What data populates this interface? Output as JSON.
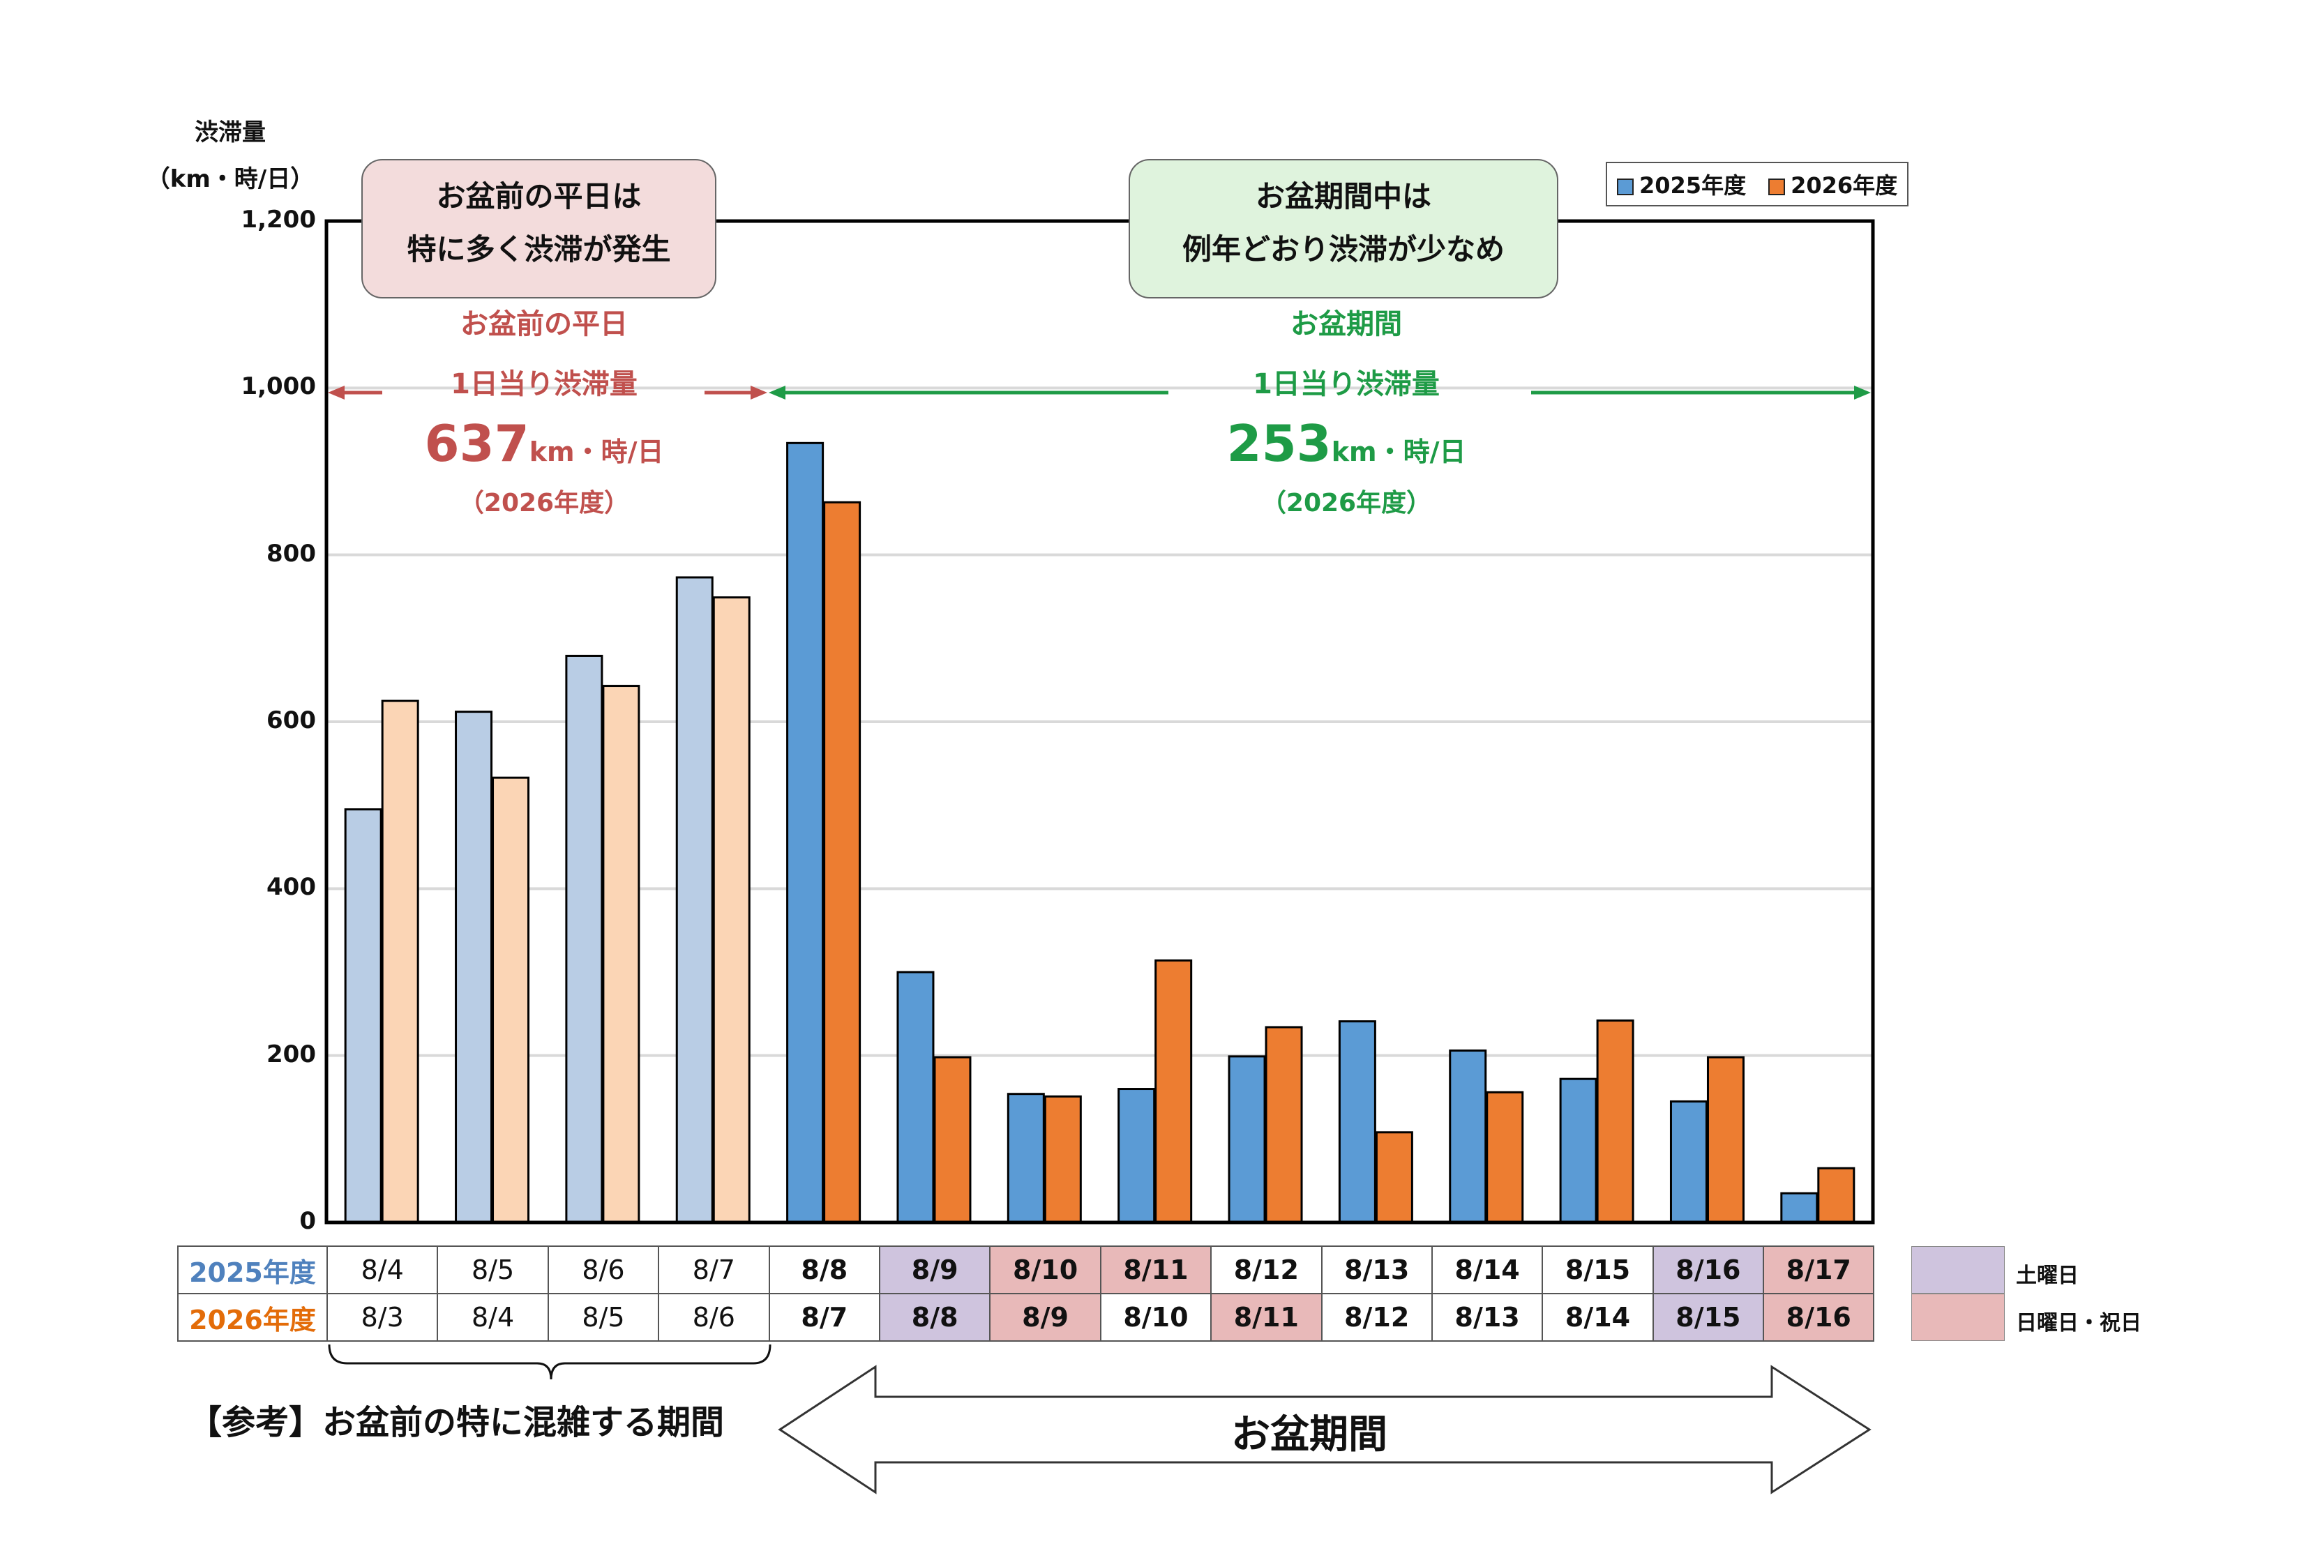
{
  "chart_data": {
    "type": "bar",
    "y_title_line1": "渋滞量",
    "y_title_line2": "（km・時/日）",
    "ylim": [
      0,
      1200
    ],
    "yticks": [
      "0",
      "200",
      "400",
      "600",
      "800",
      "1,000",
      "1,200"
    ],
    "grid": true,
    "legend_position": "top-right",
    "series": [
      {
        "name": "2025年度",
        "color": "#5b9bd5",
        "light_color": "#b9cde5",
        "values": [
          495,
          612,
          679,
          773,
          934,
          300,
          154,
          160,
          199,
          241,
          206,
          172,
          145,
          35
        ]
      },
      {
        "name": "2026年度",
        "color": "#ed7d31",
        "light_color": "#fbd5b5",
        "values": [
          625,
          533,
          643,
          749,
          863,
          198,
          151,
          314,
          234,
          108,
          156,
          242,
          198,
          65
        ]
      }
    ],
    "light_groups": 4
  },
  "notes": {
    "left_line1": "お盆前の平日は",
    "left_line2": "特に多く渋滞が発生",
    "right_line1": "お盆期間中は",
    "right_line2": "例年どおり渋滞が少なめ"
  },
  "annotations": {
    "left": {
      "title": "お盆前の平日",
      "subtitle": "1日当り渋滞量",
      "value": "637",
      "unit": "km・時/日",
      "year": "（2026年度）"
    },
    "right": {
      "title": "お盆期間",
      "subtitle": "1日当り渋滞量",
      "value": "253",
      "unit": "km・時/日",
      "year": "（2026年度）"
    }
  },
  "colors": {
    "red_text": "#c0504d",
    "green_text": "#1e9b46",
    "saturday": "#cfc4de",
    "sunday_holiday": "#e8b9b9"
  },
  "date_table": {
    "row1_label": "2025年度",
    "row2_label": "2026年度",
    "row1": [
      "8/4",
      "8/5",
      "8/6",
      "8/7",
      "8/8",
      "8/9",
      "8/10",
      "8/11",
      "8/12",
      "8/13",
      "8/14",
      "8/15",
      "8/16",
      "8/17"
    ],
    "row2": [
      "8/3",
      "8/4",
      "8/5",
      "8/6",
      "8/7",
      "8/8",
      "8/9",
      "8/10",
      "8/11",
      "8/12",
      "8/13",
      "8/14",
      "8/15",
      "8/16"
    ],
    "row1_types": [
      "",
      "",
      "",
      "",
      "",
      "sat",
      "sun",
      "sun",
      "",
      "",
      "",
      "",
      "sat",
      "sun"
    ],
    "row2_types": [
      "",
      "",
      "",
      "",
      "",
      "sat",
      "sun",
      "",
      "sun",
      "",
      "",
      "",
      "sat",
      "sun"
    ]
  },
  "key": {
    "saturday": "土曜日",
    "sunday_holiday": "日曜日・祝日"
  },
  "bottom": {
    "reference_label": "【参考】お盆前の特に混雑する期間",
    "obon_label": "お盆期間"
  }
}
